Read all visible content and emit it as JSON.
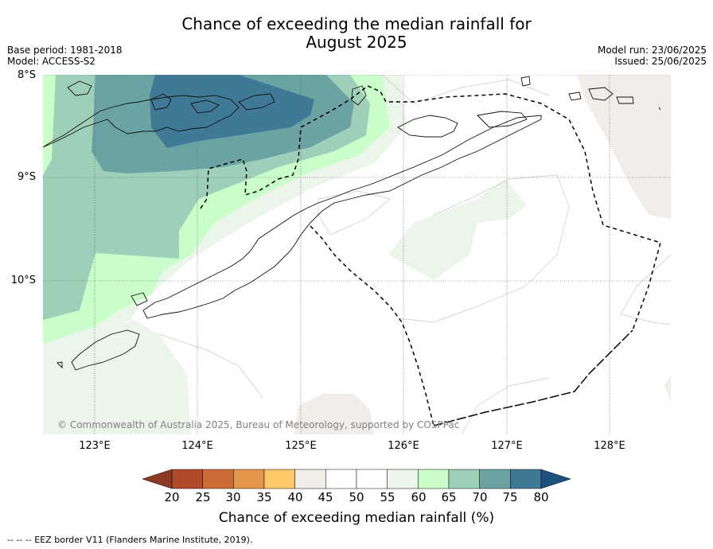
{
  "title_line1": "Chance of exceeding the median rainfall for",
  "title_line2": "August 2025",
  "base_period": "Base period: 1981-2018",
  "model": "Model: ACCESS-S2",
  "model_run": "Model run: 23/06/2025",
  "issued": "Issued: 25/06/2025",
  "lat_labels": [
    "8°S",
    "9°S",
    "10°S"
  ],
  "lon_labels": [
    "123°E",
    "124°E",
    "125°E",
    "126°E",
    "127°E",
    "128°E"
  ],
  "copyright": "© Commonwealth of Australia 2025, Bureau of Meteorology, supported by COSPPac",
  "colorbar": {
    "label": "Chance of exceeding median rainfall (%)",
    "ticks": [
      "20",
      "25",
      "30",
      "35",
      "40",
      "45",
      "50",
      "55",
      "60",
      "65",
      "70",
      "75",
      "80"
    ],
    "colors": [
      "#b24a2a",
      "#cd6a36",
      "#e2974d",
      "#fec868",
      "#f1eeea",
      "#ffffff",
      "#ffffff",
      "#ebf5ea",
      "#c9fdc9",
      "#9ecfb9",
      "#6aa3a2",
      "#3f7996"
    ],
    "under_color": "#8c3a23",
    "over_color": "#1d4f7f"
  },
  "footer": "--  --  -- EEZ border V11 (Flanders Marine Institute, 2019)."
}
